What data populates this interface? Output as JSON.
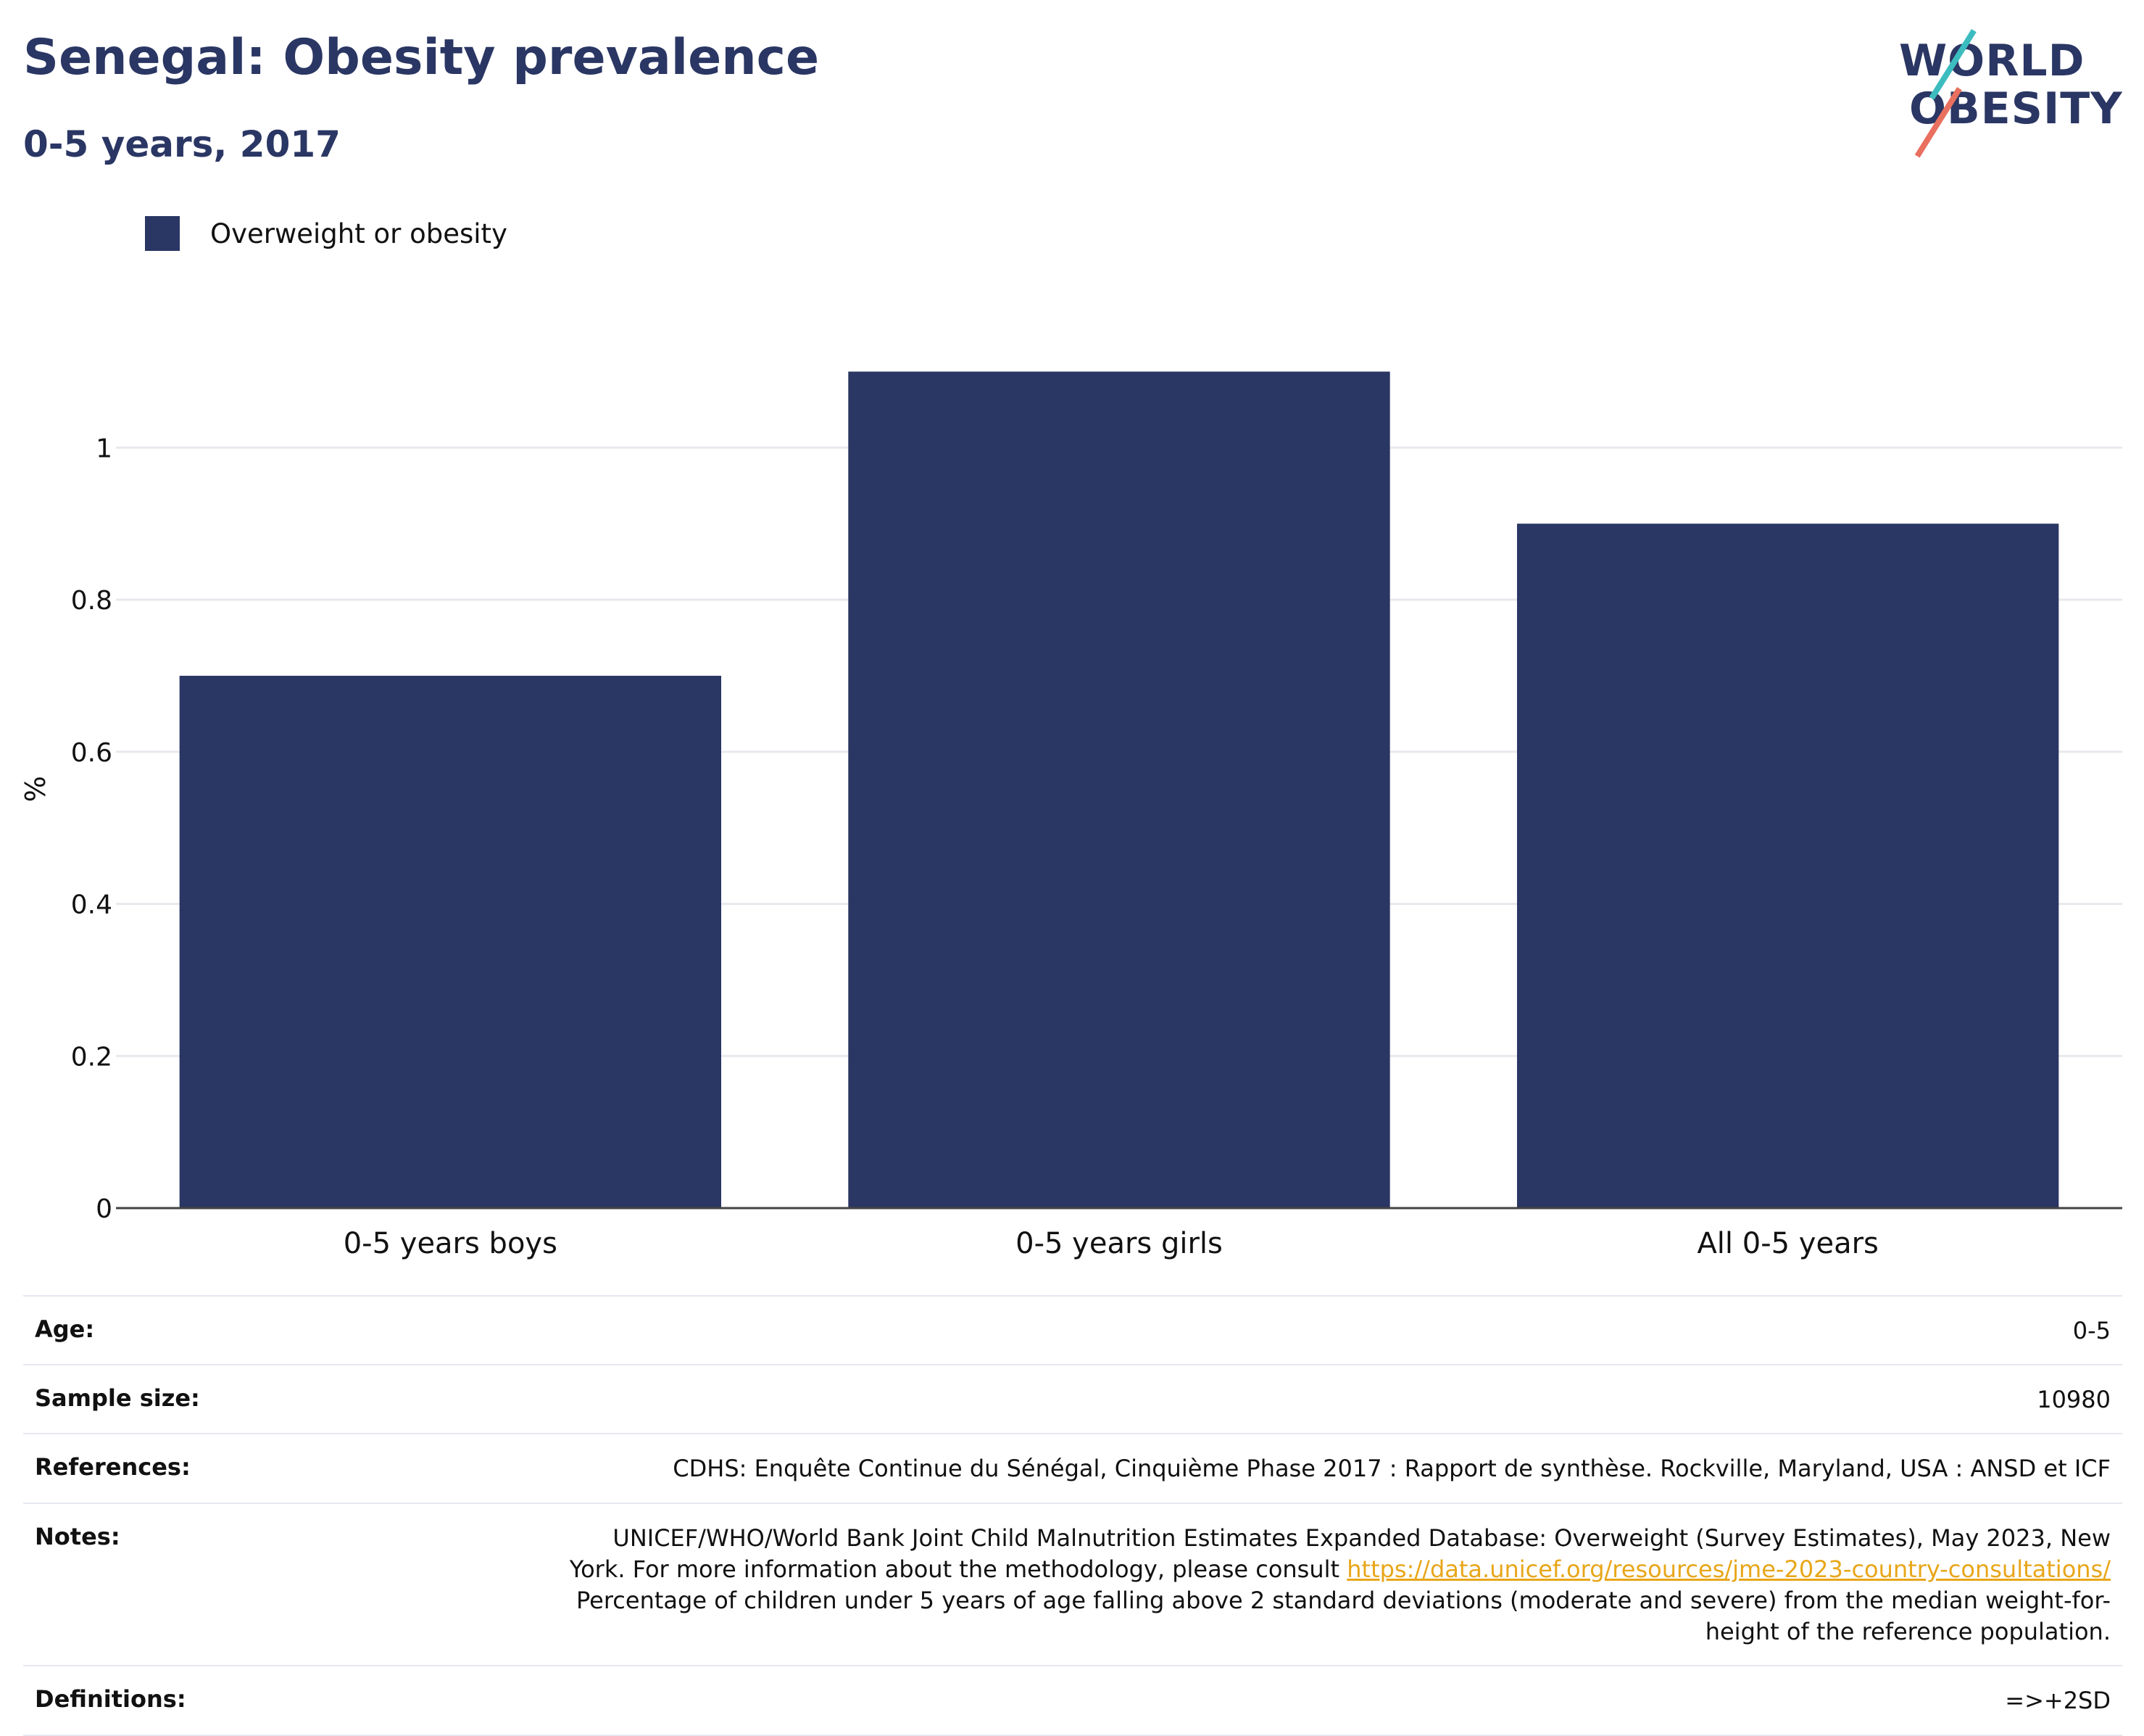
{
  "header": {
    "title": "Senegal: Obesity prevalence",
    "subtitle": "0-5 years, 2017"
  },
  "logo": {
    "line1": "WORLD",
    "line2": "OBESITY"
  },
  "legend": {
    "label": "Overweight or obesity"
  },
  "colors": {
    "bar": "#2a3663",
    "title": "#2a3663",
    "link": "#e8a619",
    "logo_teal": "#3cbcbf",
    "logo_coral": "#e9705f"
  },
  "chart_data": {
    "type": "bar",
    "categories": [
      "0-5 years boys",
      "0-5 years girls",
      "All 0-5 years"
    ],
    "series": [
      {
        "name": "Overweight or obesity",
        "values": [
          0.7,
          1.1,
          0.9
        ]
      }
    ],
    "ylabel": "%",
    "ylim": [
      0,
      1.15
    ],
    "yticks": [
      0,
      0.2,
      0.4,
      0.6,
      0.8,
      1
    ],
    "ytick_labels": [
      "0",
      "0.2",
      "0.4",
      "0.6",
      "0.8",
      "1"
    ],
    "grid": true,
    "legend_position": "top-left"
  },
  "info": {
    "age": {
      "label": "Age:",
      "value": "0-5"
    },
    "sample_size": {
      "label": "Sample size:",
      "value": "10980"
    },
    "references": {
      "label": "References:",
      "value": "CDHS: Enquête Continue du Sénégal, Cinquième Phase 2017 : Rapport de synthèse. Rockville, Maryland, USA : ANSD et ICF"
    },
    "notes": {
      "label": "Notes:",
      "text1": "UNICEF/WHO/World Bank Joint Child Malnutrition Estimates Expanded Database: Overweight (Survey Estimates), May 2023, New York. For more information about the methodology, please consult",
      "link": "https://data.unicef.org/resources/jme-2023-country-consultations/",
      "text2": "Percentage of children under 5 years of age falling above 2 standard deviations (moderate and severe) from the median weight-for-height of the reference population."
    },
    "definitions": {
      "label": "Definitions:",
      "value": "=>+2SD"
    }
  }
}
